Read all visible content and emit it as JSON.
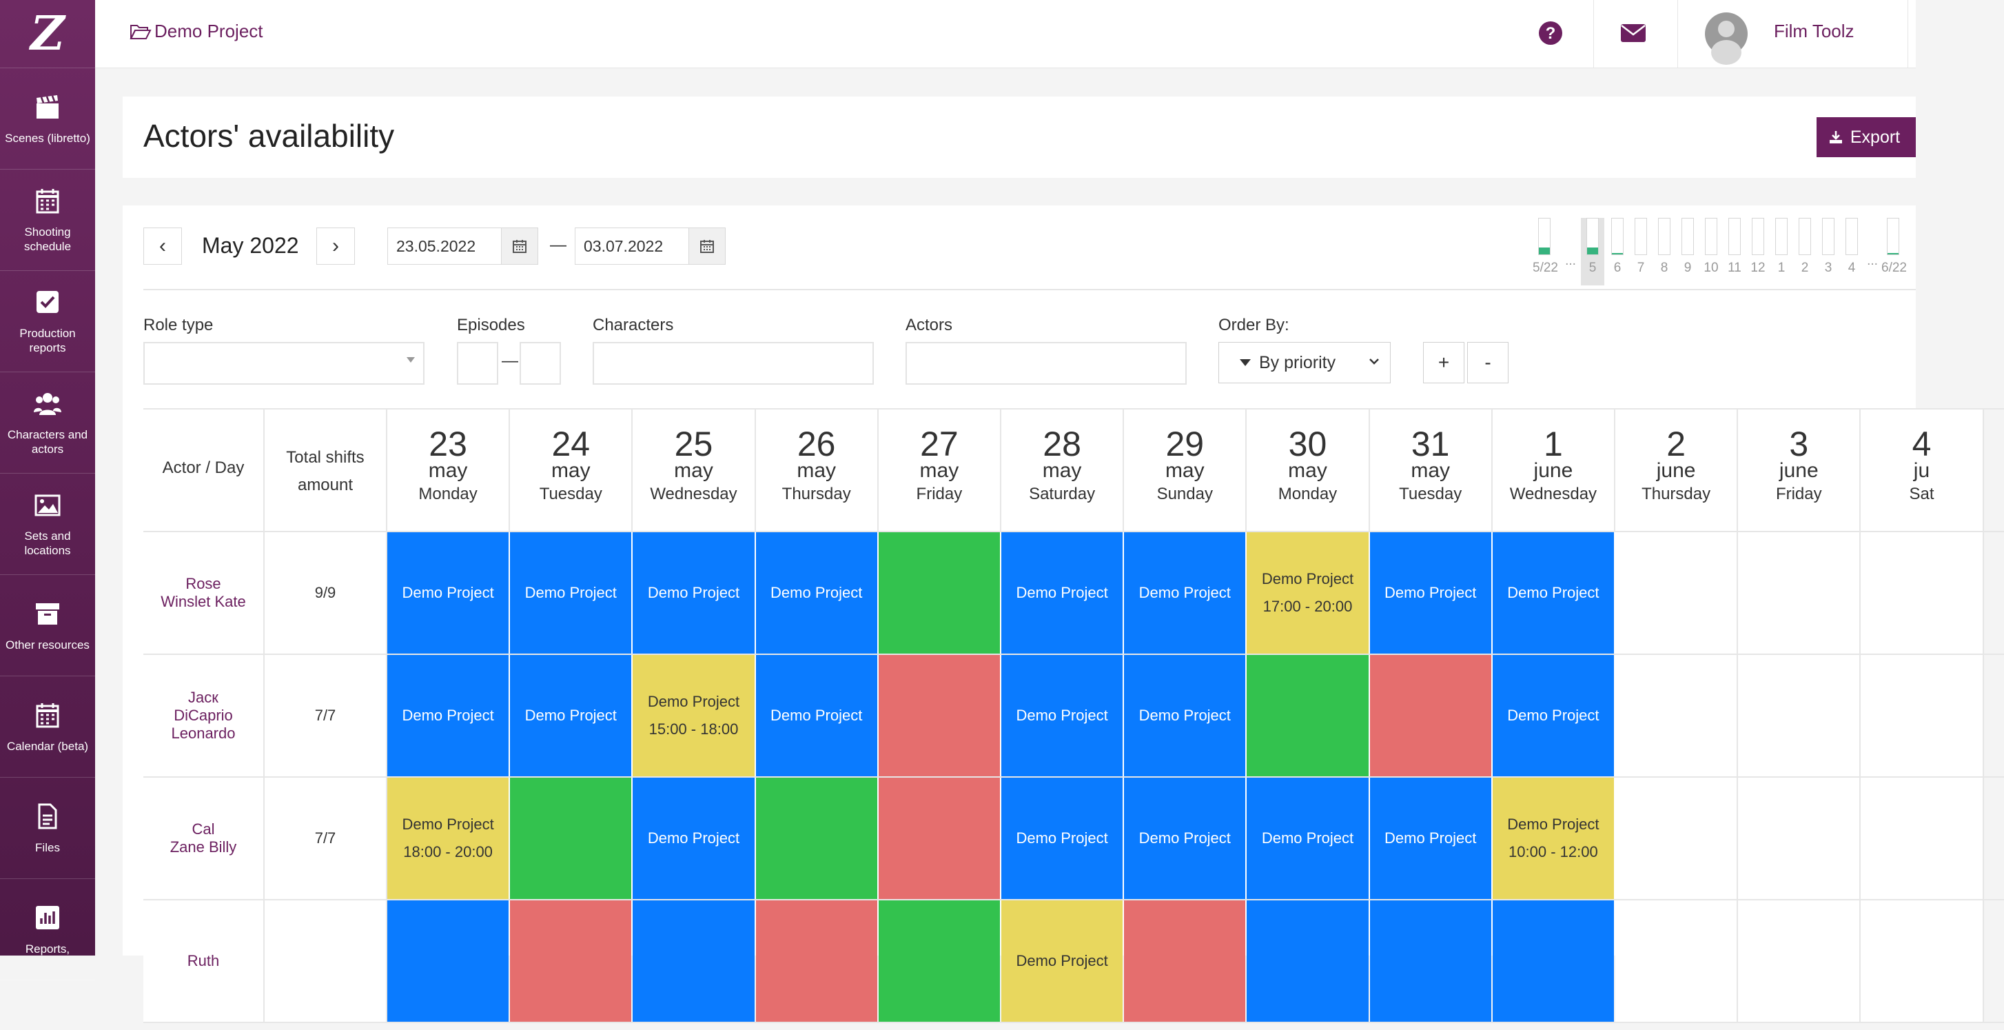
{
  "sidebar": {
    "logo": "Z",
    "items": [
      {
        "label": "Scenes (libretto)",
        "icon": "clapperboard-icon"
      },
      {
        "label": "Shooting schedule",
        "icon": "calendar-icon"
      },
      {
        "label": "Production reports",
        "icon": "checkbox-icon"
      },
      {
        "label": "Characters and actors",
        "icon": "users-icon"
      },
      {
        "label": "Sets and locations",
        "icon": "image-icon"
      },
      {
        "label": "Other resources",
        "icon": "archive-icon"
      },
      {
        "label": "Calendar (beta)",
        "icon": "calendar-icon"
      },
      {
        "label": "Files",
        "icon": "file-icon"
      },
      {
        "label": "Reports,",
        "icon": "bar-chart-icon"
      }
    ]
  },
  "header": {
    "project": "Demo Project",
    "user": "Film Toolz"
  },
  "page": {
    "title": "Actors' availability",
    "export_label": "Export"
  },
  "toolbar": {
    "prev": "‹",
    "next": "›",
    "month": "May 2022",
    "date_from": "23.05.2022",
    "date_to": "03.07.2022",
    "dash": "—"
  },
  "mini_chart": [
    {
      "label": "5/22",
      "fill": 0.2
    },
    {
      "label": "...",
      "fill": null
    },
    {
      "label": "5",
      "fill": 0.2,
      "selected": true
    },
    {
      "label": "6",
      "fill": 0.03
    },
    {
      "label": "7",
      "fill": 0
    },
    {
      "label": "8",
      "fill": 0
    },
    {
      "label": "9",
      "fill": 0
    },
    {
      "label": "10",
      "fill": 0
    },
    {
      "label": "11",
      "fill": 0
    },
    {
      "label": "12",
      "fill": 0
    },
    {
      "label": "1",
      "fill": 0
    },
    {
      "label": "2",
      "fill": 0
    },
    {
      "label": "3",
      "fill": 0
    },
    {
      "label": "4",
      "fill": 0
    },
    {
      "label": "...",
      "fill": null
    },
    {
      "label": "6/22",
      "fill": 0.03
    }
  ],
  "filters": {
    "role_type": "Role type",
    "episodes": "Episodes",
    "characters": "Characters",
    "actors": "Actors",
    "order_by": "Order By:",
    "order_value": "By priority",
    "plus": "+",
    "minus": "-",
    "ep_dash": "—"
  },
  "grid": {
    "col_actor": "Actor / Day",
    "col_total_1": "Total shifts",
    "col_total_2": "amount",
    "days": [
      {
        "num": "23",
        "month": "may",
        "weekday": "Monday"
      },
      {
        "num": "24",
        "month": "may",
        "weekday": "Tuesday"
      },
      {
        "num": "25",
        "month": "may",
        "weekday": "Wednesday"
      },
      {
        "num": "26",
        "month": "may",
        "weekday": "Thursday"
      },
      {
        "num": "27",
        "month": "may",
        "weekday": "Friday"
      },
      {
        "num": "28",
        "month": "may",
        "weekday": "Saturday"
      },
      {
        "num": "29",
        "month": "may",
        "weekday": "Sunday"
      },
      {
        "num": "30",
        "month": "may",
        "weekday": "Monday"
      },
      {
        "num": "31",
        "month": "may",
        "weekday": "Tuesday"
      },
      {
        "num": "1",
        "month": "june",
        "weekday": "Wednesday"
      },
      {
        "num": "2",
        "month": "june",
        "weekday": "Thursday"
      },
      {
        "num": "3",
        "month": "june",
        "weekday": "Friday"
      },
      {
        "num": "4",
        "month": "ju",
        "weekday": "Sat"
      }
    ],
    "rows": [
      {
        "actor": [
          "Rose",
          "Winslet Kate"
        ],
        "total": "9/9",
        "cells": [
          {
            "c": "blue",
            "t": "Demo Project"
          },
          {
            "c": "blue",
            "t": "Demo Project"
          },
          {
            "c": "blue",
            "t": "Demo Project"
          },
          {
            "c": "blue",
            "t": "Demo Project"
          },
          {
            "c": "green",
            "t": ""
          },
          {
            "c": "blue",
            "t": "Demo Project"
          },
          {
            "c": "blue",
            "t": "Demo Project"
          },
          {
            "c": "yellow",
            "t": "Demo Project",
            "t2": "17:00 - 20:00"
          },
          {
            "c": "blue",
            "t": "Demo Project"
          },
          {
            "c": "blue",
            "t": "Demo Project"
          },
          {
            "c": "empty",
            "t": ""
          },
          {
            "c": "empty",
            "t": ""
          },
          {
            "c": "empty",
            "t": ""
          }
        ]
      },
      {
        "actor": [
          "Jacк",
          "DiCaprio",
          "Leonardo"
        ],
        "total": "7/7",
        "cells": [
          {
            "c": "blue",
            "t": "Demo Project"
          },
          {
            "c": "blue",
            "t": "Demo Project"
          },
          {
            "c": "yellow",
            "t": "Demo Project",
            "t2": "15:00 - 18:00"
          },
          {
            "c": "blue",
            "t": "Demo Project"
          },
          {
            "c": "red",
            "t": ""
          },
          {
            "c": "blue",
            "t": "Demo Project"
          },
          {
            "c": "blue",
            "t": "Demo Project"
          },
          {
            "c": "green",
            "t": ""
          },
          {
            "c": "red",
            "t": ""
          },
          {
            "c": "blue",
            "t": "Demo Project"
          },
          {
            "c": "empty",
            "t": ""
          },
          {
            "c": "empty",
            "t": ""
          },
          {
            "c": "empty",
            "t": ""
          }
        ]
      },
      {
        "actor": [
          "Cal",
          "Zane Billy"
        ],
        "total": "7/7",
        "cells": [
          {
            "c": "yellow",
            "t": "Demo Project",
            "t2": "18:00 - 20:00"
          },
          {
            "c": "green",
            "t": ""
          },
          {
            "c": "blue",
            "t": "Demo Project"
          },
          {
            "c": "green",
            "t": ""
          },
          {
            "c": "red",
            "t": ""
          },
          {
            "c": "blue",
            "t": "Demo Project"
          },
          {
            "c": "blue",
            "t": "Demo Project"
          },
          {
            "c": "blue",
            "t": "Demo Project"
          },
          {
            "c": "blue",
            "t": "Demo Project"
          },
          {
            "c": "yellow",
            "t": "Demo Project",
            "t2": "10:00 - 12:00"
          },
          {
            "c": "empty",
            "t": ""
          },
          {
            "c": "empty",
            "t": ""
          },
          {
            "c": "empty",
            "t": ""
          }
        ]
      },
      {
        "actor": [
          "Ruth"
        ],
        "total": "",
        "cells": [
          {
            "c": "blue",
            "t": ""
          },
          {
            "c": "red",
            "t": ""
          },
          {
            "c": "blue",
            "t": ""
          },
          {
            "c": "red",
            "t": ""
          },
          {
            "c": "green",
            "t": ""
          },
          {
            "c": "yellow",
            "t": "Demo Project"
          },
          {
            "c": "red",
            "t": ""
          },
          {
            "c": "blue",
            "t": ""
          },
          {
            "c": "blue",
            "t": ""
          },
          {
            "c": "blue",
            "t": ""
          },
          {
            "c": "empty",
            "t": ""
          },
          {
            "c": "empty",
            "t": ""
          },
          {
            "c": "empty",
            "t": ""
          }
        ]
      }
    ]
  }
}
